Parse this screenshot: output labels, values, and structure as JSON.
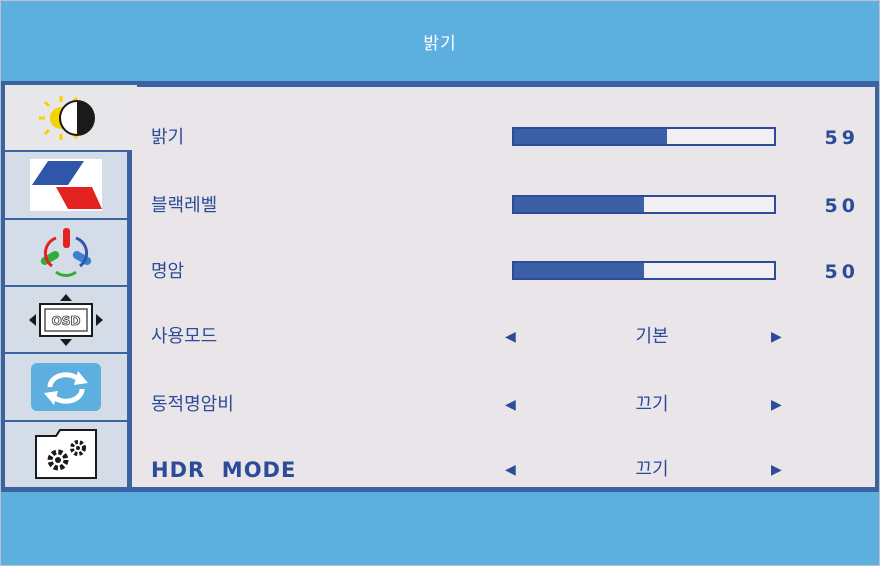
{
  "header": {
    "title": "밝기"
  },
  "tabs": [
    {
      "icon": "brightness-icon",
      "active": true
    },
    {
      "icon": "image-color-icon",
      "active": false
    },
    {
      "icon": "color-rgb-icon",
      "active": false
    },
    {
      "icon": "osd-icon",
      "active": false
    },
    {
      "icon": "reset-icon",
      "active": false
    },
    {
      "icon": "settings-gears-icon",
      "active": false
    }
  ],
  "menu": {
    "brightness": {
      "label": "밝기",
      "value": "59",
      "level": 59
    },
    "black_level": {
      "label": "블랙레벨",
      "value": "50",
      "level": 50
    },
    "contrast": {
      "label": "명암",
      "value": "50",
      "level": 50
    },
    "usage_mode": {
      "label": "사용모드",
      "option": "기본"
    },
    "dynamic_contrast": {
      "label": "동적명암비",
      "option": "끄기"
    },
    "hdr_mode": {
      "label": "HDR  MODE",
      "option": "끄기"
    }
  },
  "colors": {
    "accent": "#2c4c9a",
    "panel": "#e9e5e9",
    "background": "#5dafe0",
    "band": "#3b63a2"
  }
}
